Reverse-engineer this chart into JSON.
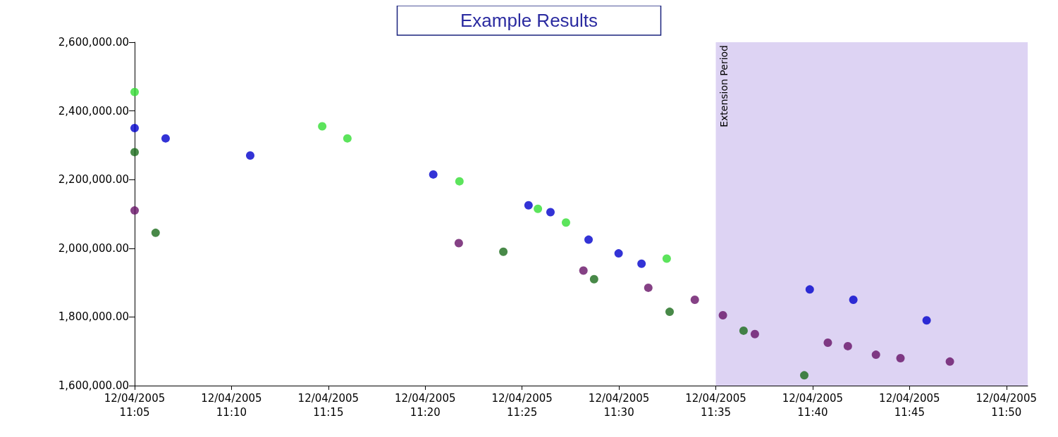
{
  "chart_data": {
    "type": "scatter",
    "title": "Example Results",
    "series": [
      {
        "color": "#33dd33",
        "x": [
          "2005-12-04T11:05:00",
          "2005-12-04T11:14:41",
          "2005-12-04T11:15:59",
          "2005-12-04T11:21:46",
          "2005-12-04T11:25:49",
          "2005-12-04T11:27:16",
          "2005-12-04T11:32:28"
        ],
        "values": [
          2455000,
          2355000,
          2320000,
          2195000,
          2115000,
          2075000,
          1970000
        ]
      },
      {
        "color": "#0000cc",
        "x": [
          "2005-12-04T11:05:00",
          "2005-12-04T11:06:36",
          "2005-12-04T11:10:58",
          "2005-12-04T11:20:25",
          "2005-12-04T11:25:20",
          "2005-12-04T11:26:28",
          "2005-12-04T11:28:26",
          "2005-12-04T11:29:59",
          "2005-12-04T11:31:10",
          "2005-12-04T11:39:51",
          "2005-12-04T11:42:06",
          "2005-12-04T11:45:53"
        ],
        "values": [
          2350000,
          2320000,
          2270000,
          2215000,
          2125000,
          2105000,
          2025000,
          1985000,
          1955000,
          1880000,
          1850000,
          1790000
        ]
      },
      {
        "color": "#1a6b1a",
        "x": [
          "2005-12-04T11:05:00",
          "2005-12-04T11:06:05",
          "2005-12-04T11:24:02",
          "2005-12-04T11:28:43",
          "2005-12-04T11:32:37",
          "2005-12-04T11:36:26",
          "2005-12-04T11:39:34"
        ],
        "values": [
          2280000,
          2045000,
          1990000,
          1910000,
          1815000,
          1760000,
          1630000
        ]
      },
      {
        "color": "#661166",
        "x": [
          "2005-12-04T11:05:00",
          "2005-12-04T11:21:44",
          "2005-12-04T11:28:10",
          "2005-12-04T11:31:31",
          "2005-12-04T11:33:55",
          "2005-12-04T11:35:22",
          "2005-12-04T11:37:01",
          "2005-12-04T11:40:47",
          "2005-12-04T11:41:49",
          "2005-12-04T11:43:16",
          "2005-12-04T11:44:32",
          "2005-12-04T11:47:05"
        ],
        "values": [
          2110000,
          2015000,
          1935000,
          1885000,
          1850000,
          1805000,
          1750000,
          1725000,
          1715000,
          1690000,
          1680000,
          1670000
        ]
      }
    ],
    "xlim": [
      "2005-12-04T11:05",
      "2005-12-04T11:51:06"
    ],
    "xticks": [
      {
        "value": "2005-12-04T11:05",
        "label": "12/04/2005\n11:05"
      },
      {
        "value": "2005-12-04T11:10",
        "label": "12/04/2005\n11:10"
      },
      {
        "value": "2005-12-04T11:15",
        "label": "12/04/2005\n11:15"
      },
      {
        "value": "2005-12-04T11:20",
        "label": "12/04/2005\n11:20"
      },
      {
        "value": "2005-12-04T11:25",
        "label": "12/04/2005\n11:25"
      },
      {
        "value": "2005-12-04T11:30",
        "label": "12/04/2005\n11:30"
      },
      {
        "value": "2005-12-04T11:35",
        "label": "12/04/2005\n11:35"
      },
      {
        "value": "2005-12-04T11:40",
        "label": "12/04/2005\n11:40"
      },
      {
        "value": "2005-12-04T11:45",
        "label": "12/04/2005\n11:45"
      },
      {
        "value": "2005-12-04T11:50",
        "label": "12/04/2005\n11:50"
      }
    ],
    "ylim": [
      1600000,
      2600000
    ],
    "yticks": [
      {
        "value": 1600000,
        "label": "1,600,000.00"
      },
      {
        "value": 1800000,
        "label": "1,800,000.00"
      },
      {
        "value": 2000000,
        "label": "2,000,000.00"
      },
      {
        "value": 2200000,
        "label": "2,200,000.00"
      },
      {
        "value": 2400000,
        "label": "2,400,000.00"
      },
      {
        "value": 2600000,
        "label": "2,600,000.00"
      }
    ],
    "bands": [
      {
        "axis": "x",
        "from": "2005-12-04T11:35",
        "to": "2005-12-04T11:51:06",
        "label": "Extension Period",
        "color": "#ddd3f3"
      }
    ],
    "grid": false,
    "marker": "circle"
  }
}
